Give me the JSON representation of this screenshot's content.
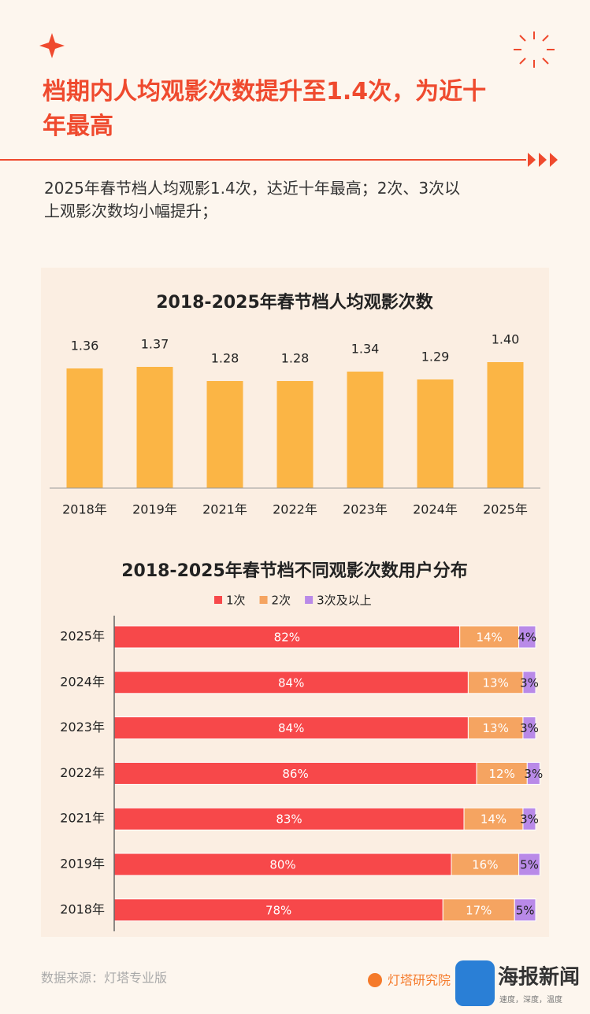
{
  "header": {
    "title": "档期内人均观影次数提升至1.4次，为近十年最高",
    "subtitle": "2025年春节档人均观影1.4次，达近十年最高；2次、3次以上观影次数均小幅提升；"
  },
  "chart_data": [
    {
      "type": "bar",
      "title": "2018-2025年春节档人均观影次数",
      "categories": [
        "2018年",
        "2019年",
        "2021年",
        "2022年",
        "2023年",
        "2024年",
        "2025年"
      ],
      "values": [
        1.36,
        1.37,
        1.28,
        1.28,
        1.34,
        1.29,
        1.4
      ],
      "value_labels": [
        "1.36",
        "1.37",
        "1.28",
        "1.28",
        "1.34",
        "1.29",
        "1.40"
      ],
      "color": "#fbb545",
      "ylim": [
        0.6,
        1.5
      ]
    },
    {
      "type": "stacked-hbar",
      "title": "2018-2025年春节档不同观影次数用户分布",
      "categories": [
        "2025年",
        "2024年",
        "2023年",
        "2022年",
        "2021年",
        "2019年",
        "2018年"
      ],
      "series": [
        {
          "name": "1次",
          "color": "#f7484a",
          "values": [
            82,
            84,
            84,
            86,
            83,
            80,
            78
          ],
          "value_labels": [
            "82%",
            "84%",
            "84%",
            "86%",
            "83%",
            "80%",
            "78%"
          ]
        },
        {
          "name": "2次",
          "color": "#f5a461",
          "values": [
            14,
            13,
            13,
            12,
            14,
            16,
            17
          ],
          "value_labels": [
            "14%",
            "13%",
            "13%",
            "12%",
            "14%",
            "16%",
            "17%"
          ]
        },
        {
          "name": "3次及以上",
          "color": "#b98ae8",
          "values": [
            4,
            3,
            3,
            3,
            3,
            5,
            5
          ],
          "value_labels": [
            "4%",
            "3%",
            "3%",
            "3%",
            "3%",
            "5%",
            "5%"
          ]
        }
      ],
      "xlim": [
        0,
        100
      ],
      "legend": "top"
    }
  ],
  "footer": {
    "source": "数据来源：灯塔专业版",
    "logos": [
      "灯塔研究院",
      "海报新闻",
      "速度，深度，温度"
    ]
  }
}
